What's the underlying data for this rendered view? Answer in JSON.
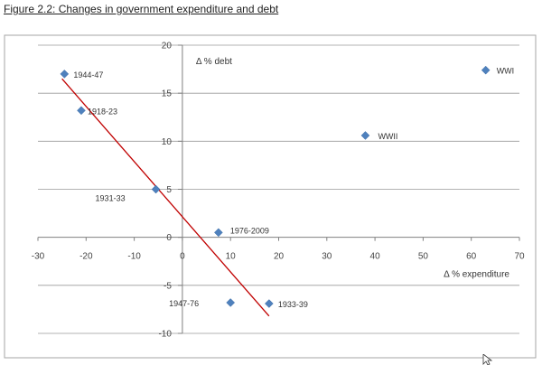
{
  "figure_caption": "Figure 2.2: Changes in government expenditure and debt",
  "colors": {
    "marker": "#4F81BD",
    "trendline": "#C00000",
    "grid": "#9A9A9A",
    "axis": "#808080",
    "frame": "#A6A6A6"
  },
  "icons": {
    "cursor": "mouse-pointer-icon",
    "marker": "diamond"
  },
  "chart_data": {
    "type": "scatter",
    "title": "",
    "xlabel": "Δ % expenditure",
    "ylabel": "Δ % debt",
    "xlim": [
      -30,
      70
    ],
    "ylim": [
      -10,
      20
    ],
    "x_ticks": [
      "-30",
      "-20",
      "-10",
      "0",
      "10",
      "20",
      "30",
      "40",
      "50",
      "60",
      "70"
    ],
    "y_ticks": [
      "-10",
      "-5",
      "0",
      "5",
      "10",
      "15",
      "20"
    ],
    "grid": "horizontal",
    "legend": "none",
    "points": [
      {
        "label": "1944-47",
        "x": -24.5,
        "y": 17.0
      },
      {
        "label": "1918-23",
        "x": -21.0,
        "y": 13.2
      },
      {
        "label": "1931-33",
        "x": -5.5,
        "y": 5.0
      },
      {
        "label": "1976-2009",
        "x": 7.5,
        "y": 0.5
      },
      {
        "label": "1947-76",
        "x": 10.0,
        "y": -6.8
      },
      {
        "label": "1933-39",
        "x": 18.0,
        "y": -6.9
      },
      {
        "label": "WWII",
        "x": 38.0,
        "y": 10.6
      },
      {
        "label": "WWI",
        "x": 63.0,
        "y": 17.4
      }
    ],
    "trendline": {
      "type": "linear",
      "x_start": -25.0,
      "y_start": 16.5,
      "x_end": 18.0,
      "y_end": -8.2
    }
  }
}
